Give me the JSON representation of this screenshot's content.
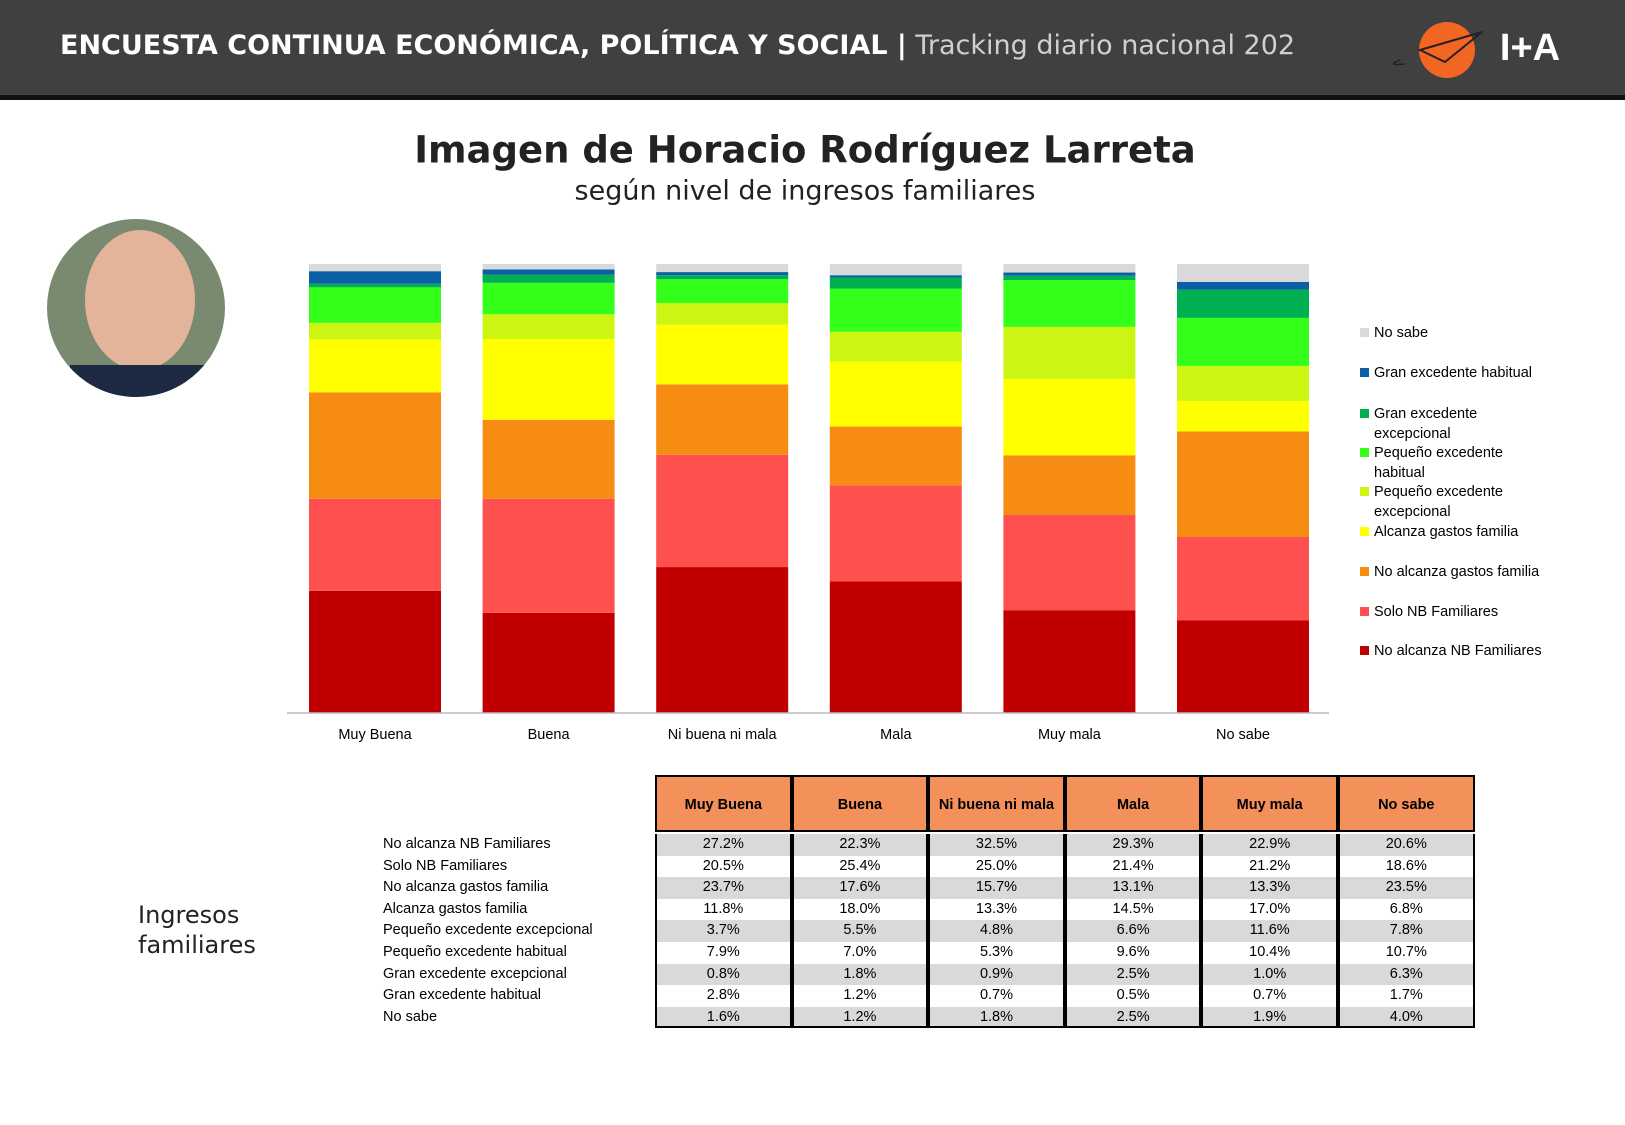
{
  "header": {
    "title": "ENCUESTA CONTINUA ECONÓMICA, POLÍTICA Y SOCIAL |",
    "subtitle": "Tracking diario nacional 202",
    "logo": "I+A"
  },
  "chart_data": {
    "type": "stacked_bar",
    "title": "Imagen de Horacio Rodríguez Larreta",
    "subtitle": "según nivel de ingresos familiares",
    "categories": [
      "Muy Buena",
      "Buena",
      "Ni buena ni mala",
      "Mala",
      "Muy mala",
      "No sabe"
    ],
    "ylim": [
      0,
      100
    ],
    "series": [
      {
        "name": "No alcanza NB Familiares",
        "color": "#c00000",
        "values": [
          27.2,
          22.3,
          32.5,
          29.3,
          22.9,
          20.6
        ],
        "value_labels": [
          "27.2%",
          "22.3%",
          "32.5%",
          "29.3%",
          "22.9%",
          "20.6%"
        ]
      },
      {
        "name": "Solo NB Familiares",
        "color": "#ff5050",
        "values": [
          20.5,
          25.4,
          25.0,
          21.4,
          21.2,
          18.6
        ],
        "value_labels": [
          "20.5%",
          "25.4%",
          "25.0%",
          "21.4%",
          "21.2%",
          "18.6%"
        ]
      },
      {
        "name": "No alcanza gastos familia",
        "color": "#f78c13",
        "values": [
          23.7,
          17.6,
          15.7,
          13.1,
          13.3,
          23.5
        ],
        "value_labels": [
          "23.7%",
          "17.6%",
          "15.7%",
          "13.1%",
          "13.3%",
          "23.5%"
        ]
      },
      {
        "name": "Alcanza gastos familia",
        "color": "#ffff00",
        "values": [
          11.8,
          18.0,
          13.3,
          14.5,
          17.0,
          6.8
        ],
        "value_labels": [
          "11.8%",
          "18.0%",
          "13.3%",
          "14.5%",
          "17.0%",
          "6.8%"
        ]
      },
      {
        "name": "Pequeño excedente excepcional",
        "color": "#ccf514",
        "values": [
          3.7,
          5.5,
          4.8,
          6.6,
          11.6,
          7.8
        ],
        "value_labels": [
          "3.7%",
          "5.5%",
          "4.8%",
          "6.6%",
          "11.6%",
          "7.8%"
        ]
      },
      {
        "name": "Pequeño excedente habitual",
        "color": "#33ff1a",
        "values": [
          7.9,
          7.0,
          5.3,
          9.6,
          10.4,
          10.7
        ],
        "value_labels": [
          "7.9%",
          "7.0%",
          "5.3%",
          "9.6%",
          "10.4%",
          "10.7%"
        ]
      },
      {
        "name": "Gran excedente excepcional",
        "color": "#00b050",
        "values": [
          0.8,
          1.8,
          0.9,
          2.5,
          1.0,
          6.3
        ],
        "value_labels": [
          "0.8%",
          "1.8%",
          "0.9%",
          "2.5%",
          "1.0%",
          "6.3%"
        ]
      },
      {
        "name": "Gran excedente habitual",
        "color": "#0b5fa5",
        "values": [
          2.8,
          1.2,
          0.7,
          0.5,
          0.7,
          1.7
        ],
        "value_labels": [
          "2.8%",
          "1.2%",
          "0.7%",
          "0.5%",
          "0.7%",
          "1.7%"
        ]
      },
      {
        "name": "No sabe",
        "color": "#d9d9d9",
        "values": [
          1.6,
          1.2,
          1.8,
          2.5,
          1.9,
          4.0
        ],
        "value_labels": [
          "1.6%",
          "1.2%",
          "1.8%",
          "2.5%",
          "1.9%",
          "4.0%"
        ]
      }
    ]
  },
  "table": {
    "row_header": "Ingresos familiares"
  }
}
